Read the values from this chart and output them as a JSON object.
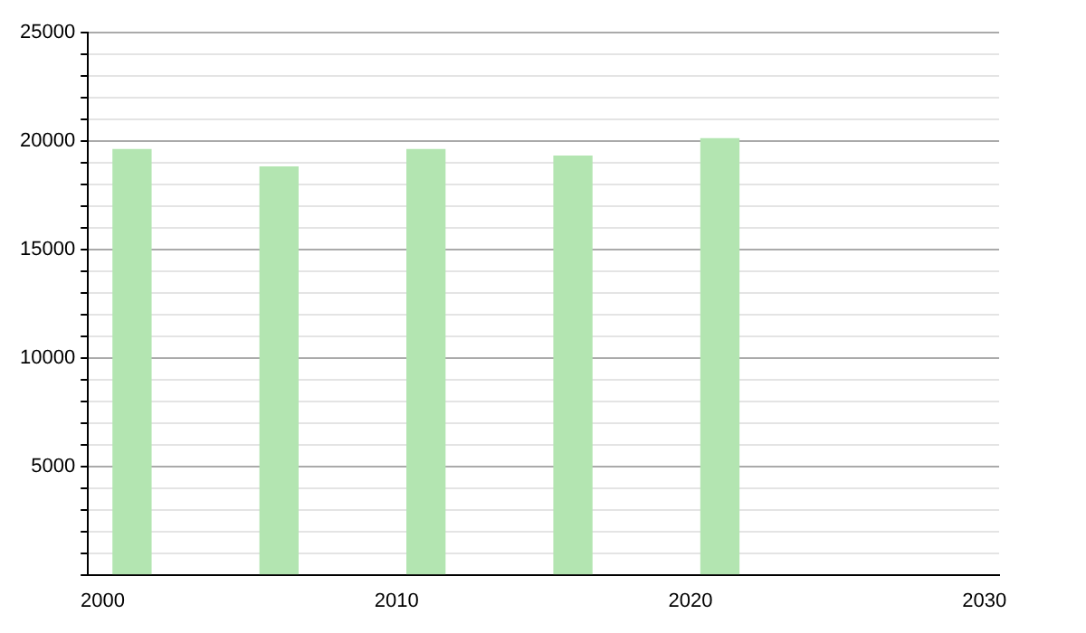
{
  "chart_data": {
    "type": "bar",
    "x": [
      2001,
      2006,
      2011,
      2016,
      2021
    ],
    "values": [
      19600,
      18800,
      19600,
      19300,
      20100
    ],
    "color": "#b3e5b1",
    "xlim": [
      1999.5,
      2030.5
    ],
    "xticks": [
      2000,
      2010,
      2020,
      2030
    ],
    "ylim": [
      0,
      25000
    ],
    "yticks": [
      {
        "value": 0,
        "label": null
      },
      {
        "value": 1000,
        "label": null
      },
      {
        "value": 2000,
        "label": null
      },
      {
        "value": 3000,
        "label": null
      },
      {
        "value": 4000,
        "label": null
      },
      5000,
      {
        "value": 6000,
        "label": null
      },
      {
        "value": 7000,
        "label": null
      },
      {
        "value": 8000,
        "label": null
      },
      {
        "value": 9000,
        "label": null
      },
      10000,
      {
        "value": 11000,
        "label": null
      },
      {
        "value": 12000,
        "label": null
      },
      {
        "value": 13000,
        "label": null
      },
      {
        "value": 14000,
        "label": null
      },
      15000,
      {
        "value": 16000,
        "label": null
      },
      {
        "value": 17000,
        "label": null
      },
      {
        "value": 18000,
        "label": null
      },
      {
        "value": 19000,
        "label": null
      },
      20000,
      {
        "value": 21000,
        "label": null
      },
      {
        "value": 22000,
        "label": null
      },
      {
        "value": 23000,
        "label": null
      },
      {
        "value": 24000,
        "label": null
      },
      25000
    ],
    "grid": "y",
    "legend": false
  }
}
